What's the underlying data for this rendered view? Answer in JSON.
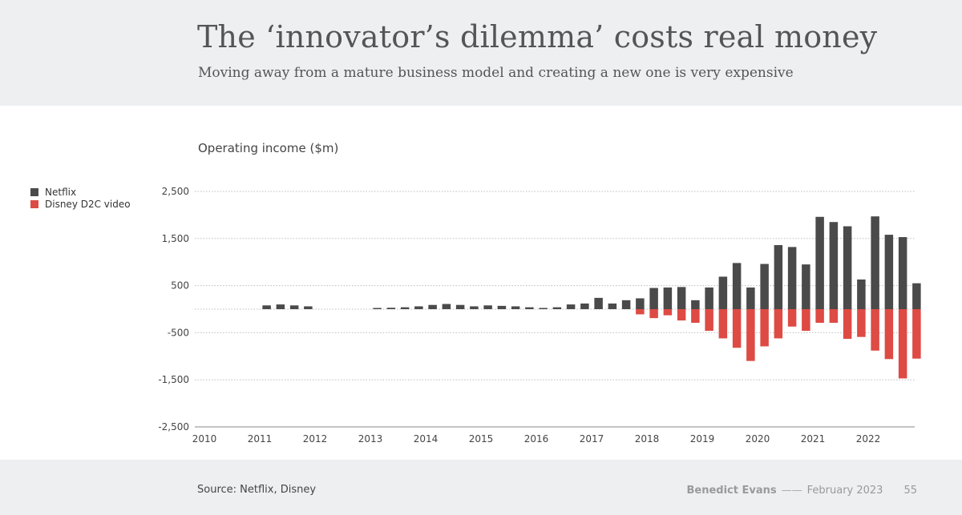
{
  "header": {
    "title": "The ‘innovator’s dilemma’ costs real money",
    "subtitle": "Moving away from a mature business model and creating a new one is very expensive"
  },
  "footer": {
    "source": "Source: Netflix, Disney",
    "author": "Benedict Evans",
    "separator": "——",
    "date": "February 2023",
    "page": "55"
  },
  "colors": {
    "netflix": "#4a4a4a",
    "disney": "#dd4b44",
    "grid": "#bdbdbd",
    "axis_text": "#444444"
  },
  "chart_data": {
    "type": "bar",
    "title": "Operating income ($m)",
    "xlabel": "",
    "ylabel": "",
    "ylim": [
      -2500,
      2500
    ],
    "yticks": [
      2500,
      1500,
      500,
      -500,
      -1500,
      -2500
    ],
    "ytick_labels": [
      "2,500",
      "1,500",
      "500",
      "-500",
      "-1,500",
      "-2,500"
    ],
    "xtick_labels": [
      "2010",
      "2011",
      "2012",
      "2013",
      "2014",
      "2015",
      "2016",
      "2017",
      "2018",
      "2019",
      "2020",
      "2021",
      "2022"
    ],
    "legend": [
      "Netflix",
      "Disney D2C video"
    ],
    "legend_position": "top-left",
    "grid": true,
    "first_quarter": "2010 Q1",
    "num_quarters": 52,
    "series": [
      {
        "name": "Netflix",
        "quarter_index_start": 4,
        "values": [
          80,
          100,
          80,
          60,
          null,
          null,
          null,
          null,
          10,
          30,
          40,
          60,
          90,
          110,
          90,
          60,
          80,
          70,
          60,
          40,
          20,
          40,
          100,
          120,
          240,
          120,
          190,
          230,
          450,
          460,
          470,
          190,
          460,
          690,
          980,
          460,
          960,
          1360,
          1320,
          950,
          1960,
          1850,
          1760,
          630,
          1970,
          1580,
          1530,
          550
        ]
      },
      {
        "name": "Disney D2C video",
        "quarter_index_start": 31,
        "values": [
          -110,
          -190,
          -130,
          -240,
          -290,
          -460,
          -620,
          -820,
          -1100,
          -790,
          -620,
          -370,
          -460,
          -290,
          -290,
          -630,
          -590,
          -880,
          -1060,
          -1470,
          -1050
        ]
      }
    ]
  }
}
